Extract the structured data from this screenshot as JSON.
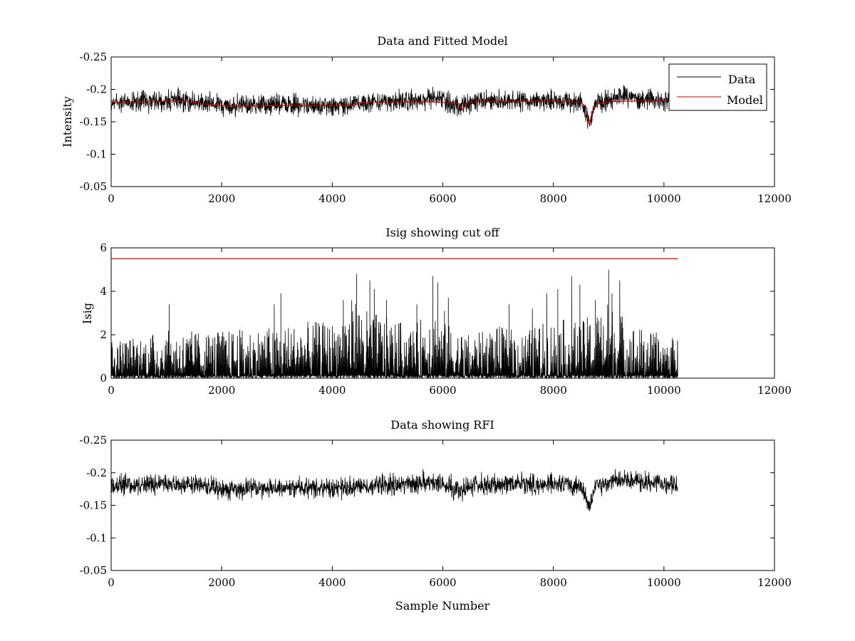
{
  "figure": {
    "background": "#ffffff"
  },
  "chart_data": [
    {
      "type": "line",
      "title": "Data and Fitted Model",
      "xlabel": "",
      "ylabel": "Intensity",
      "xlim": [
        0,
        12000
      ],
      "ylim": [
        -0.25,
        -0.05
      ],
      "y_reversed": true,
      "xticks": [
        0,
        2000,
        4000,
        6000,
        8000,
        10000,
        12000
      ],
      "xtick_labels": [
        "0",
        "2000",
        "4000",
        "6000",
        "8000",
        "10000",
        "12000"
      ],
      "yticks": [
        -0.05,
        -0.1,
        -0.15,
        -0.2,
        -0.25
      ],
      "ytick_labels": [
        "-0.05",
        "-0.1",
        "-0.15",
        "-0.2",
        "-0.25"
      ],
      "grid": false,
      "legend": {
        "position": "top-right",
        "entries": [
          "Data",
          "Model"
        ]
      },
      "series": [
        {
          "name": "Data",
          "color": "#000000",
          "noise_amplitude": 0.012,
          "x": [
            0,
            1000,
            1600,
            2000,
            2400,
            3000,
            3600,
            4000,
            4400,
            5000,
            5600,
            5800,
            6000,
            6300,
            6500,
            7000,
            7500,
            8000,
            8500,
            8650,
            8750,
            9000,
            9200,
            9600,
            10250
          ],
          "y": [
            -0.18,
            -0.183,
            -0.18,
            -0.175,
            -0.175,
            -0.177,
            -0.176,
            -0.176,
            -0.178,
            -0.181,
            -0.184,
            -0.187,
            -0.183,
            -0.172,
            -0.18,
            -0.182,
            -0.183,
            -0.182,
            -0.18,
            -0.145,
            -0.178,
            -0.185,
            -0.19,
            -0.185,
            -0.182
          ]
        },
        {
          "name": "Model",
          "color": "#cc0000",
          "x": [
            0,
            800,
            1200,
            1600,
            2000,
            2400,
            3000,
            3600,
            4000,
            4400,
            4500,
            5000,
            5600,
            6000,
            6300,
            6350,
            6450,
            7000,
            7500,
            8000,
            8500,
            8600,
            8650,
            8700,
            8800,
            9000,
            9500,
            10250
          ],
          "y": [
            -0.18,
            -0.181,
            -0.183,
            -0.178,
            -0.175,
            -0.174,
            -0.175,
            -0.175,
            -0.175,
            -0.175,
            -0.18,
            -0.18,
            -0.181,
            -0.18,
            -0.178,
            -0.168,
            -0.18,
            -0.182,
            -0.182,
            -0.182,
            -0.18,
            -0.172,
            -0.145,
            -0.165,
            -0.178,
            -0.181,
            -0.182,
            -0.183
          ]
        }
      ]
    },
    {
      "type": "line",
      "title": "Isig showing cut off",
      "xlabel": "",
      "ylabel": "Isig",
      "xlim": [
        0,
        12000
      ],
      "ylim": [
        0,
        6
      ],
      "xticks": [
        0,
        2000,
        4000,
        6000,
        8000,
        10000,
        12000
      ],
      "xtick_labels": [
        "0",
        "2000",
        "4000",
        "6000",
        "8000",
        "10000",
        "12000"
      ],
      "yticks": [
        0,
        2,
        4,
        6
      ],
      "ytick_labels": [
        "0",
        "2",
        "4",
        "6"
      ],
      "grid": false,
      "series": [
        {
          "color": "#000000",
          "x": [
            0,
            1000,
            2000,
            3000,
            3500,
            4000,
            4400,
            4600,
            5000,
            5500,
            5800,
            6000,
            6500,
            7000,
            7500,
            8000,
            8500,
            9000,
            9500,
            10250
          ],
          "envelope": [
            1.8,
            2.2,
            2.2,
            2.4,
            2.6,
            2.6,
            3.8,
            3.2,
            2.8,
            2.4,
            3.6,
            2.6,
            2.0,
            2.4,
            2.2,
            2.8,
            2.6,
            3.6,
            2.4,
            1.8
          ],
          "peaks_x": [
            1050,
            2950,
            3070,
            4200,
            4440,
            4680,
            4760,
            4980,
            5530,
            5820,
            5910,
            6030,
            6100,
            7200,
            7620,
            7880,
            8080,
            8330,
            8480,
            8760,
            9000,
            9060,
            9200
          ],
          "peaks_y": [
            3.4,
            3.4,
            3.9,
            3.6,
            4.8,
            4.5,
            4.1,
            3.6,
            3.4,
            4.7,
            4.4,
            3.1,
            3.7,
            3.4,
            3.2,
            3.9,
            4.1,
            4.7,
            4.3,
            3.6,
            5.0,
            3.9,
            4.5
          ]
        },
        {
          "name": "cut off",
          "color": "#cc0000",
          "x": [
            0,
            10250
          ],
          "y": [
            5.5,
            5.5
          ]
        }
      ]
    },
    {
      "type": "line",
      "title": "Data showing RFI",
      "xlabel": "Sample Number",
      "ylabel": "",
      "xlim": [
        0,
        12000
      ],
      "ylim": [
        -0.25,
        -0.05
      ],
      "y_reversed": true,
      "xticks": [
        0,
        2000,
        4000,
        6000,
        8000,
        10000,
        12000
      ],
      "xtick_labels": [
        "0",
        "2000",
        "4000",
        "6000",
        "8000",
        "10000",
        "12000"
      ],
      "yticks": [
        -0.05,
        -0.1,
        -0.15,
        -0.2,
        -0.25
      ],
      "ytick_labels": [
        "-0.05",
        "-0.1",
        "-0.15",
        "-0.2",
        "-0.25"
      ],
      "grid": false,
      "series": [
        {
          "color": "#000000",
          "noise_amplitude": 0.012,
          "x": [
            0,
            1000,
            1600,
            2000,
            2400,
            3000,
            3600,
            4000,
            4400,
            5000,
            5600,
            5800,
            6000,
            6300,
            6500,
            7000,
            7500,
            8000,
            8500,
            8650,
            8750,
            9000,
            9200,
            9600,
            10250
          ],
          "y": [
            -0.18,
            -0.183,
            -0.18,
            -0.175,
            -0.175,
            -0.177,
            -0.176,
            -0.176,
            -0.178,
            -0.181,
            -0.184,
            -0.187,
            -0.183,
            -0.172,
            -0.18,
            -0.182,
            -0.183,
            -0.182,
            -0.18,
            -0.145,
            -0.178,
            -0.185,
            -0.19,
            -0.185,
            -0.182
          ]
        }
      ]
    }
  ]
}
